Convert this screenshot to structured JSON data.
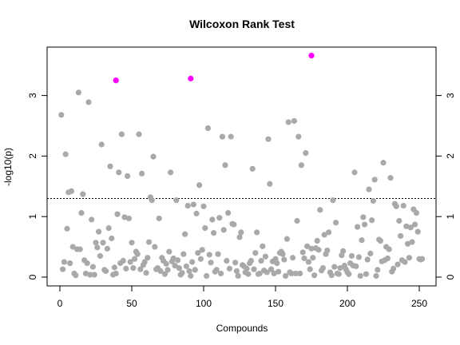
{
  "chart_data": {
    "type": "scatter",
    "title": "Wilcoxon Rank Test",
    "xlabel": "Compounds",
    "ylabel": "-log10(p)",
    "xlim": [
      0,
      253
    ],
    "ylim": [
      0,
      3.7
    ],
    "x_ticks": [
      0,
      50,
      100,
      150,
      200,
      250
    ],
    "x_tick_labels": [
      "0",
      "50",
      "100",
      "150",
      "200",
      "250"
    ],
    "y_ticks": [
      0,
      1,
      2,
      3
    ],
    "y_tick_labels": [
      "0",
      "1",
      "2",
      "3"
    ],
    "threshold": 1.3,
    "threshold_style": "dotted",
    "grid": false,
    "legend": "none",
    "colors": {
      "normal": "#a9a9a9",
      "highlight": "#ff00ff",
      "axis": "#000000"
    },
    "series": [
      {
        "color": "#a9a9a9",
        "points": [
          [
            1,
            2.68
          ],
          [
            2,
            0.13
          ],
          [
            3,
            0.25
          ],
          [
            4,
            2.03
          ],
          [
            5,
            0.8
          ],
          [
            6,
            1.4
          ],
          [
            7,
            0.23
          ],
          [
            8,
            1.42
          ],
          [
            9,
            0.5
          ],
          [
            10,
            0.06
          ],
          [
            11,
            0.03
          ],
          [
            12,
            0.46
          ],
          [
            13,
            3.05
          ],
          [
            14,
            0.46
          ],
          [
            15,
            1.06
          ],
          [
            16,
            1.37
          ],
          [
            17,
            0.28
          ],
          [
            18,
            0.06
          ],
          [
            19,
            0.23
          ],
          [
            20,
            2.89
          ],
          [
            21,
            0.04
          ],
          [
            22,
            0.95
          ],
          [
            23,
            0.17
          ],
          [
            24,
            0.04
          ],
          [
            25,
            0.57
          ],
          [
            26,
            0.49
          ],
          [
            27,
            0.75
          ],
          [
            28,
            0.35
          ],
          [
            29,
            2.19
          ],
          [
            30,
            0.57
          ],
          [
            31,
            0.12
          ],
          [
            32,
            0.1
          ],
          [
            33,
            0.47
          ],
          [
            34,
            0.81
          ],
          [
            35,
            1.83
          ],
          [
            36,
            0.64
          ],
          [
            37,
            0.04
          ],
          [
            38,
            0.16
          ],
          [
            39,
            0.06
          ],
          [
            40,
            1.04
          ],
          [
            41,
            1.73
          ],
          [
            42,
            0.23
          ],
          [
            43,
            2.36
          ],
          [
            44,
            0.27
          ],
          [
            45,
            0.99
          ],
          [
            46,
            0.14
          ],
          [
            47,
            1.67
          ],
          [
            48,
            0.97
          ],
          [
            49,
            0.25
          ],
          [
            50,
            0.57
          ],
          [
            51,
            0.15
          ],
          [
            52,
            0.3
          ],
          [
            53,
            0.42
          ],
          [
            54,
            0.38
          ],
          [
            55,
            2.36
          ],
          [
            56,
            0.13
          ],
          [
            57,
            1.71
          ],
          [
            58,
            0.2
          ],
          [
            59,
            0.25
          ],
          [
            60,
            0.07
          ],
          [
            61,
            0.32
          ],
          [
            62,
            0.58
          ],
          [
            63,
            1.32
          ],
          [
            64,
            1.27
          ],
          [
            65,
            1.99
          ],
          [
            66,
            0.5
          ],
          [
            67,
            0.13
          ],
          [
            68,
            0.15
          ],
          [
            69,
            0.97
          ],
          [
            70,
            0.1
          ],
          [
            71,
            0.32
          ],
          [
            72,
            0.27
          ],
          [
            73,
            0.05
          ],
          [
            74,
            0.22
          ],
          [
            75,
            0.12
          ],
          [
            76,
            0.42
          ],
          [
            77,
            1.73
          ],
          [
            78,
            0.26
          ],
          [
            79,
            0.31
          ],
          [
            80,
            0.19
          ],
          [
            81,
            1.27
          ],
          [
            82,
            0.28
          ],
          [
            83,
            0.15
          ],
          [
            84,
            0.04
          ],
          [
            85,
            0.07
          ],
          [
            86,
            0.38
          ],
          [
            87,
            0.71
          ],
          [
            88,
            0.18
          ],
          [
            89,
            1.18
          ],
          [
            90,
            0.1
          ],
          [
            91,
            0.02
          ],
          [
            92,
            0.25
          ],
          [
            93,
            1.2
          ],
          [
            94,
            0.12
          ],
          [
            95,
            1.05
          ],
          [
            96,
            0.4
          ],
          [
            97,
            1.52
          ],
          [
            98,
            0.3
          ],
          [
            99,
            0.45
          ],
          [
            100,
            1.17
          ],
          [
            101,
            0.81
          ],
          [
            102,
            0.02
          ],
          [
            103,
            2.46
          ],
          [
            104,
            0.37
          ],
          [
            105,
            0.24
          ],
          [
            106,
            0.95
          ],
          [
            107,
            0.73
          ],
          [
            108,
            0.09
          ],
          [
            109,
            0.12
          ],
          [
            110,
            0.38
          ],
          [
            111,
            0.98
          ],
          [
            112,
            0.06
          ],
          [
            113,
            2.32
          ],
          [
            114,
            0.78
          ],
          [
            115,
            1.85
          ],
          [
            116,
            0.27
          ],
          [
            117,
            1.06
          ],
          [
            118,
            0.14
          ],
          [
            119,
            2.32
          ],
          [
            120,
            0.88
          ],
          [
            121,
            0.87
          ],
          [
            122,
            0.24
          ],
          [
            123,
            0.1
          ],
          [
            124,
            0.02
          ],
          [
            125,
            0.66
          ],
          [
            126,
            0.74
          ],
          [
            127,
            0.2
          ],
          [
            128,
            0.18
          ],
          [
            129,
            0.08
          ],
          [
            130,
            0.14
          ],
          [
            131,
            0.05
          ],
          [
            132,
            0.23
          ],
          [
            133,
            0.27
          ],
          [
            134,
            1.79
          ],
          [
            135,
            0.13
          ],
          [
            136,
            0.4
          ],
          [
            137,
            0.74
          ],
          [
            138,
            0.05
          ],
          [
            139,
            0.06
          ],
          [
            140,
            0.27
          ],
          [
            141,
            0.51
          ],
          [
            142,
            0.11
          ],
          [
            143,
            0.34
          ],
          [
            144,
            0.08
          ],
          [
            145,
            2.28
          ],
          [
            146,
            1.54
          ],
          [
            147,
            0.13
          ],
          [
            148,
            0.26
          ],
          [
            149,
            0.06
          ],
          [
            150,
            0.3
          ],
          [
            151,
            0.23
          ],
          [
            152,
            0.09
          ],
          [
            153,
            0.4
          ],
          [
            154,
            0.42
          ],
          [
            155,
            0.38
          ],
          [
            156,
            0.29
          ],
          [
            157,
            0.02
          ],
          [
            158,
            0.63
          ],
          [
            159,
            2.56
          ],
          [
            160,
            0.08
          ],
          [
            161,
            0.06
          ],
          [
            162,
            0.32
          ],
          [
            163,
            2.58
          ],
          [
            164,
            0.06
          ],
          [
            165,
            0.93
          ],
          [
            166,
            2.32
          ],
          [
            167,
            0.06
          ],
          [
            168,
            1.85
          ],
          [
            169,
            0.41
          ],
          [
            170,
            0.31
          ],
          [
            171,
            2.05
          ],
          [
            172,
            0.51
          ],
          [
            173,
            0.25
          ],
          [
            174,
            0.13
          ],
          [
            175,
            0.47
          ],
          [
            176,
            0.32
          ],
          [
            177,
            0.03
          ],
          [
            178,
            0.48
          ],
          [
            179,
            0.6
          ],
          [
            180,
            0.45
          ],
          [
            181,
            1.11
          ],
          [
            182,
            0.11
          ],
          [
            183,
            0.15
          ],
          [
            184,
            0.7
          ],
          [
            185,
            0.38
          ],
          [
            186,
            0.44
          ],
          [
            187,
            0.74
          ],
          [
            188,
            0.08
          ],
          [
            189,
            0.03
          ],
          [
            190,
            1.27
          ],
          [
            191,
            0.17
          ],
          [
            192,
            0.9
          ],
          [
            193,
            0.06
          ],
          [
            194,
            0.05
          ],
          [
            195,
            0.15
          ],
          [
            196,
            0.36
          ],
          [
            197,
            0.43
          ],
          [
            198,
            0.19
          ],
          [
            199,
            0.13
          ],
          [
            200,
            0.08
          ],
          [
            201,
            0.05
          ],
          [
            202,
            0.23
          ],
          [
            203,
            0.35
          ],
          [
            204,
            0.19
          ],
          [
            205,
            1.73
          ],
          [
            206,
            0.18
          ],
          [
            207,
            0.83
          ],
          [
            208,
            0.33
          ],
          [
            209,
            0.02
          ],
          [
            210,
            0.61
          ],
          [
            211,
            0.99
          ],
          [
            212,
            0.87
          ],
          [
            213,
            0.05
          ],
          [
            214,
            0.29
          ],
          [
            215,
            1.45
          ],
          [
            216,
            0.39
          ],
          [
            217,
            0.94
          ],
          [
            218,
            1.26
          ],
          [
            219,
            1.61
          ],
          [
            220,
            0.02
          ],
          [
            221,
            0.12
          ],
          [
            222,
            0.62
          ],
          [
            223,
            0.6
          ],
          [
            224,
            0.26
          ],
          [
            225,
            1.89
          ],
          [
            226,
            0.28
          ],
          [
            227,
            0.5
          ],
          [
            228,
            0.31
          ],
          [
            229,
            0.46
          ],
          [
            230,
            1.64
          ],
          [
            231,
            0.09
          ],
          [
            232,
            0.14
          ],
          [
            233,
            1.21
          ],
          [
            234,
            1.17
          ],
          [
            235,
            0.21
          ],
          [
            236,
            0.93
          ],
          [
            237,
            0.68
          ],
          [
            238,
            0.28
          ],
          [
            239,
            1.18
          ],
          [
            240,
            0.25
          ],
          [
            241,
            0.84
          ],
          [
            242,
            0.55
          ],
          [
            243,
            0.32
          ],
          [
            244,
            0.82
          ],
          [
            245,
            0.58
          ],
          [
            246,
            1.12
          ],
          [
            247,
            0.87
          ],
          [
            248,
            1.06
          ],
          [
            249,
            0.75
          ],
          [
            250,
            0.3
          ],
          [
            251,
            0.29
          ],
          [
            252,
            0.3
          ]
        ]
      },
      {
        "color": "#ff00ff",
        "points": [
          [
            39,
            3.25
          ],
          [
            91,
            3.28
          ],
          [
            175,
            3.66
          ]
        ]
      }
    ]
  }
}
